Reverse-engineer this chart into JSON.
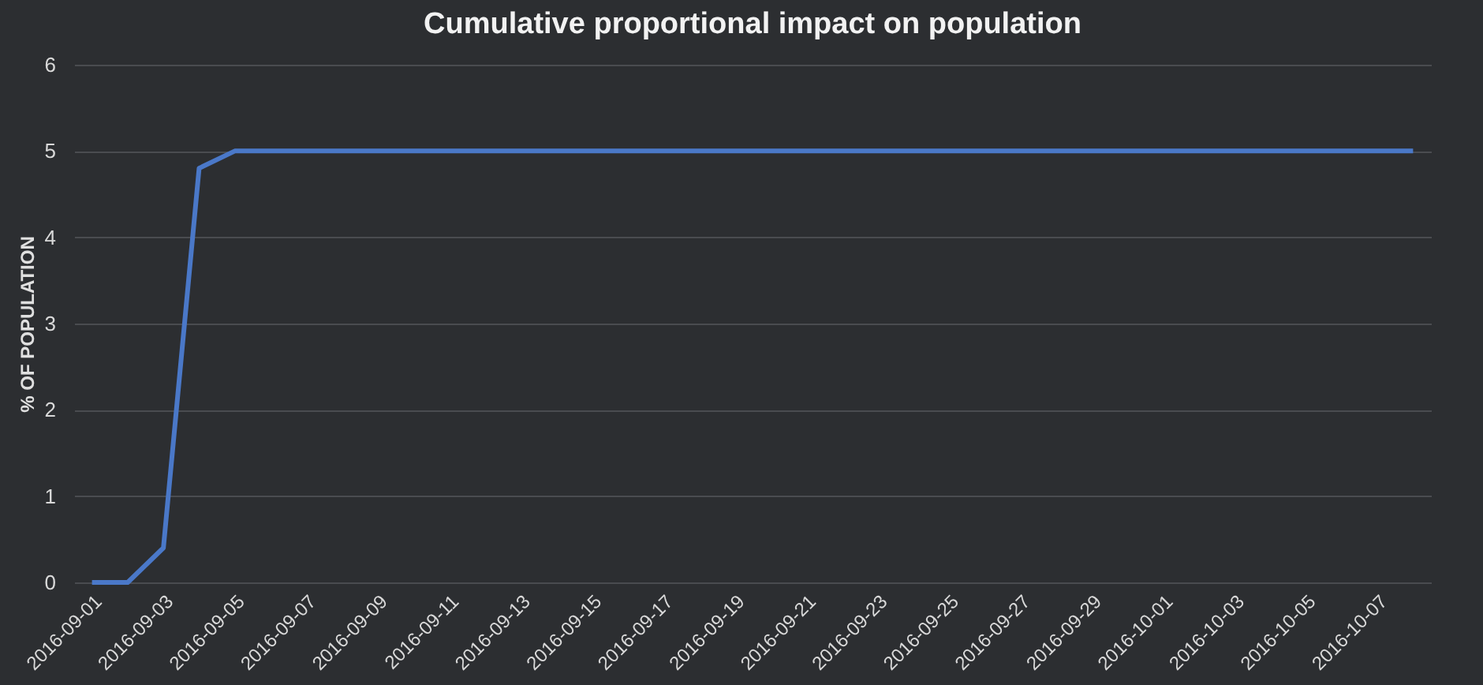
{
  "chart_data": {
    "type": "line",
    "title": "Cumulative proportional impact on population",
    "ylabel": "% OF POPULATION",
    "categories": [
      "2016-09-01",
      null,
      "2016-09-03",
      null,
      "2016-09-05",
      null,
      "2016-09-07",
      null,
      "2016-09-09",
      null,
      "2016-09-11",
      null,
      "2016-09-13",
      null,
      "2016-09-15",
      null,
      "2016-09-17",
      null,
      "2016-09-19",
      null,
      "2016-09-21",
      null,
      "2016-09-23",
      null,
      "2016-09-25",
      null,
      "2016-09-27",
      null,
      "2016-09-29",
      null,
      "2016-10-01",
      null,
      "2016-10-03",
      null,
      "2016-10-05",
      null,
      "2016-10-07",
      null
    ],
    "series": [
      {
        "color": "#4a78c8",
        "values": [
          0,
          0,
          0.4,
          4.8,
          5,
          5,
          5,
          5,
          5,
          5,
          5,
          5,
          5,
          5,
          5,
          5,
          5,
          5,
          5,
          5,
          5,
          5,
          5,
          5,
          5,
          5,
          5,
          5,
          5,
          5,
          5,
          5,
          5,
          5,
          5,
          5,
          5,
          5
        ]
      }
    ],
    "ylim": [
      0,
      6
    ],
    "yticks": [
      0,
      1,
      2,
      3,
      4,
      5,
      6
    ],
    "grid": "y",
    "marker": "none",
    "line_style": "solid"
  }
}
